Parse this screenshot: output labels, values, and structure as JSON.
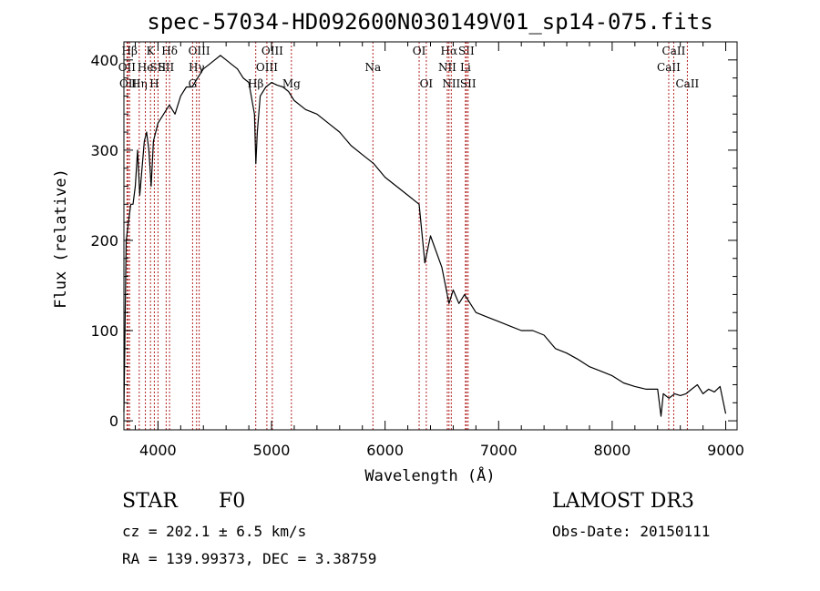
{
  "chart_data": {
    "type": "line",
    "title": "spec-57034-HD092600N030149V01_sp14-075.fits",
    "xlabel": "Wavelength (Å)",
    "ylabel": "Flux (relative)",
    "xlim": [
      3700,
      9100
    ],
    "ylim": [
      -10,
      420
    ],
    "xticks": [
      4000,
      5000,
      6000,
      7000,
      8000,
      9000
    ],
    "yticks": [
      0,
      100,
      200,
      300,
      400
    ],
    "series": [
      {
        "name": "spectrum",
        "x": [
          3700,
          3720,
          3740,
          3760,
          3780,
          3800,
          3820,
          3840,
          3860,
          3880,
          3900,
          3920,
          3940,
          3960,
          3980,
          4000,
          4050,
          4100,
          4150,
          4200,
          4250,
          4300,
          4350,
          4400,
          4450,
          4500,
          4550,
          4600,
          4650,
          4700,
          4750,
          4800,
          4850,
          4862,
          4875,
          4900,
          4950,
          5000,
          5050,
          5100,
          5150,
          5200,
          5300,
          5400,
          5500,
          5600,
          5700,
          5800,
          5900,
          6000,
          6100,
          6200,
          6300,
          6350,
          6400,
          6500,
          6563,
          6600,
          6650,
          6700,
          6800,
          6900,
          7000,
          7100,
          7200,
          7300,
          7400,
          7500,
          7600,
          7700,
          7800,
          7900,
          8000,
          8100,
          8200,
          8300,
          8400,
          8430,
          8450,
          8500,
          8550,
          8600,
          8650,
          8700,
          8750,
          8800,
          8850,
          8900,
          8950,
          9000
        ],
        "y": [
          10,
          200,
          220,
          240,
          240,
          260,
          300,
          250,
          280,
          310,
          320,
          300,
          260,
          310,
          320,
          330,
          340,
          350,
          340,
          360,
          370,
          370,
          380,
          390,
          395,
          400,
          405,
          400,
          395,
          390,
          380,
          375,
          340,
          285,
          320,
          360,
          370,
          375,
          372,
          370,
          365,
          355,
          345,
          340,
          330,
          320,
          305,
          295,
          285,
          270,
          260,
          250,
          240,
          175,
          205,
          170,
          130,
          145,
          130,
          140,
          120,
          115,
          110,
          105,
          100,
          100,
          95,
          80,
          75,
          68,
          60,
          55,
          50,
          42,
          38,
          35,
          35,
          5,
          30,
          25,
          30,
          28,
          30,
          35,
          40,
          30,
          35,
          32,
          38,
          8
        ]
      }
    ],
    "lines": [
      {
        "name": "Hβ",
        "wavelength": 3750,
        "row": 1
      },
      {
        "name": "OII",
        "wavelength": 3727,
        "row": 2
      },
      {
        "name": "OII",
        "wavelength": 3737,
        "row": 3
      },
      {
        "name": "Hη",
        "wavelength": 3835,
        "row": 3
      },
      {
        "name": "He",
        "wavelength": 3889,
        "row": 2
      },
      {
        "name": "K",
        "wavelength": 3934,
        "row": 1
      },
      {
        "name": "SII",
        "wavelength": 4000,
        "row": 2
      },
      {
        "name": "H",
        "wavelength": 3968,
        "row": 3
      },
      {
        "name": "Hδ",
        "wavelength": 4102,
        "row": 1
      },
      {
        "name": "SII",
        "wavelength": 4072,
        "row": 2
      },
      {
        "name": "OIII",
        "wavelength": 4363,
        "row": 1
      },
      {
        "name": "Hγ",
        "wavelength": 4340,
        "row": 2
      },
      {
        "name": "G",
        "wavelength": 4305,
        "row": 3
      },
      {
        "name": "OIII",
        "wavelength": 5007,
        "row": 1
      },
      {
        "name": "OIII",
        "wavelength": 4959,
        "row": 2
      },
      {
        "name": "Hβ",
        "wavelength": 4861,
        "row": 3
      },
      {
        "name": "Mg",
        "wavelength": 5175,
        "row": 3
      },
      {
        "name": "Na",
        "wavelength": 5893,
        "row": 2
      },
      {
        "name": "OI",
        "wavelength": 6300,
        "row": 1
      },
      {
        "name": "OI",
        "wavelength": 6363,
        "row": 3
      },
      {
        "name": "Hα",
        "wavelength": 6563,
        "row": 1
      },
      {
        "name": "NII",
        "wavelength": 6548,
        "row": 2
      },
      {
        "name": "NII",
        "wavelength": 6583,
        "row": 3
      },
      {
        "name": "SII",
        "wavelength": 6716,
        "row": 1
      },
      {
        "name": "Li",
        "wavelength": 6708,
        "row": 2
      },
      {
        "name": "SII",
        "wavelength": 6731,
        "row": 3
      },
      {
        "name": "CaII",
        "wavelength": 8542,
        "row": 1
      },
      {
        "name": "CaII",
        "wavelength": 8498,
        "row": 2
      },
      {
        "name": "CaII",
        "wavelength": 8662,
        "row": 3
      }
    ]
  },
  "info": {
    "class": "STAR",
    "subclass": "F0",
    "survey": "LAMOST DR3",
    "cz": "cz = 202.1 ± 6.5 km/s",
    "obs_date": "Obs-Date: 20150111",
    "radec": "RA = 139.99373, DEC =    3.38759"
  },
  "colors": {
    "spectrum": "#000000",
    "emission_line": "#b22222",
    "axis": "#000000"
  }
}
